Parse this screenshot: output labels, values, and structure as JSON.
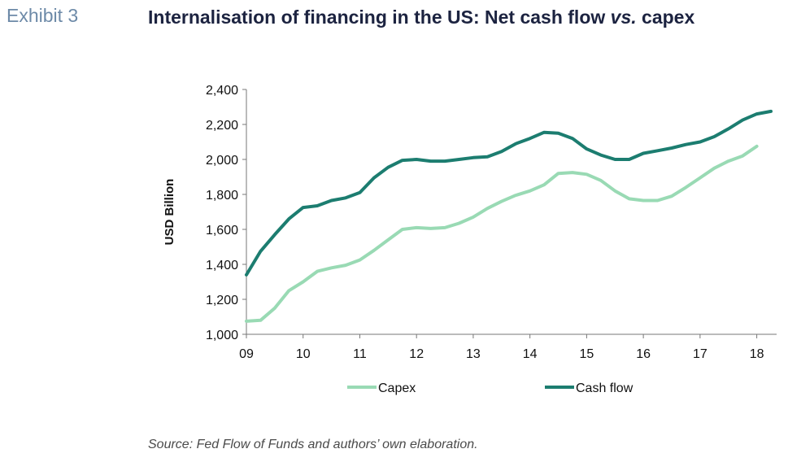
{
  "header": {
    "exhibit": "Exhibit 3",
    "title_main": "Internalisation of financing in the US: Net cash flow ",
    "title_italic": "vs.",
    "title_tail": " capex"
  },
  "source": "Source: Fed Flow of Funds and authors’ own elaboration.",
  "colors": {
    "capex": "#99dab4",
    "cashflow": "#1c7d70",
    "axis": "#777777"
  },
  "chart_data": {
    "type": "line",
    "title": "Internalisation of financing in the US: Net cash flow vs. capex",
    "ylabel": "USD Billion",
    "xlabel": "",
    "ylim": [
      1000,
      2400
    ],
    "y_ticks": [
      "1,000",
      "1,200",
      "1,400",
      "1,600",
      "1,800",
      "2,000",
      "2,200",
      "2,400"
    ],
    "y_tick_values": [
      1000,
      1200,
      1400,
      1600,
      1800,
      2000,
      2200,
      2400
    ],
    "x_ticks": [
      "09",
      "10",
      "11",
      "12",
      "13",
      "14",
      "15",
      "16",
      "17",
      "18"
    ],
    "x_tick_values": [
      2009,
      2010,
      2011,
      2012,
      2013,
      2014,
      2015,
      2016,
      2017,
      2018
    ],
    "xlim": [
      2009,
      2018.35
    ],
    "grid": false,
    "legend": "bottom",
    "series": [
      {
        "name": "Capex",
        "color": "#99dab4",
        "x": [
          2009,
          2009.25,
          2009.5,
          2009.75,
          2010,
          2010.25,
          2010.5,
          2010.75,
          2011,
          2011.25,
          2011.5,
          2011.75,
          2012,
          2012.25,
          2012.5,
          2012.75,
          2013,
          2013.25,
          2013.5,
          2013.75,
          2014,
          2014.25,
          2014.5,
          2014.75,
          2015,
          2015.25,
          2015.5,
          2015.75,
          2016,
          2016.25,
          2016.5,
          2016.75,
          2017,
          2017.25,
          2017.5,
          2017.75,
          2018
        ],
        "values": [
          1075,
          1080,
          1150,
          1250,
          1300,
          1360,
          1380,
          1395,
          1425,
          1480,
          1540,
          1600,
          1610,
          1605,
          1610,
          1635,
          1670,
          1720,
          1760,
          1795,
          1820,
          1855,
          1920,
          1925,
          1915,
          1880,
          1820,
          1775,
          1765,
          1765,
          1790,
          1840,
          1895,
          1950,
          1990,
          2020,
          2075
        ]
      },
      {
        "name": "Cash flow",
        "color": "#1c7d70",
        "x": [
          2009,
          2009.25,
          2009.5,
          2009.75,
          2010,
          2010.25,
          2010.5,
          2010.75,
          2011,
          2011.25,
          2011.5,
          2011.75,
          2012,
          2012.25,
          2012.5,
          2012.75,
          2013,
          2013.25,
          2013.5,
          2013.75,
          2014,
          2014.25,
          2014.5,
          2014.75,
          2015,
          2015.25,
          2015.5,
          2015.75,
          2016,
          2016.25,
          2016.5,
          2016.75,
          2017,
          2017.25,
          2017.5,
          2017.75,
          2018,
          2018.25
        ],
        "values": [
          1340,
          1475,
          1570,
          1660,
          1725,
          1735,
          1765,
          1780,
          1810,
          1895,
          1955,
          1995,
          2000,
          1990,
          1990,
          2000,
          2010,
          2015,
          2045,
          2090,
          2120,
          2155,
          2150,
          2120,
          2060,
          2025,
          2000,
          2000,
          2035,
          2050,
          2065,
          2085,
          2100,
          2130,
          2175,
          2225,
          2260,
          2275
        ]
      }
    ]
  }
}
